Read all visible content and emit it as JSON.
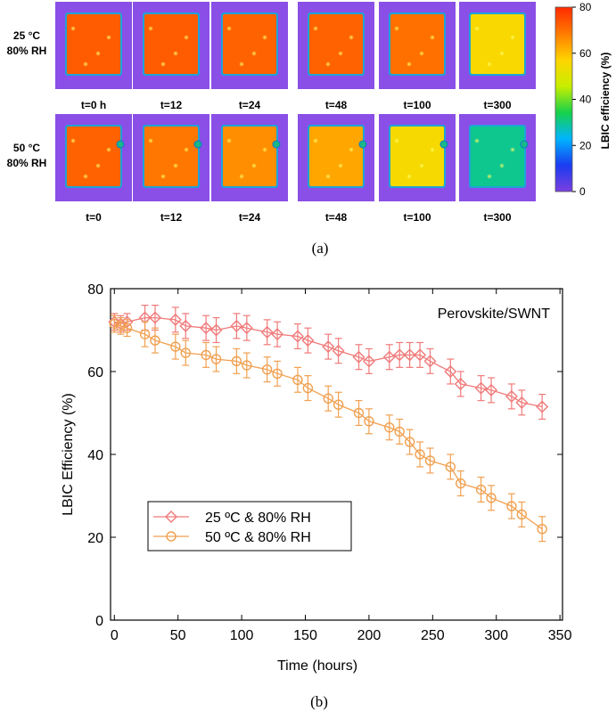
{
  "panel_a": {
    "caption": "(a)",
    "rows": [
      {
        "condition_line1": "25 °C",
        "condition_line2": "80% RH",
        "time_labels": [
          "t=0 h",
          "t=12",
          "t=24",
          "t=48",
          "t=100",
          "t=300"
        ],
        "map_efficiency_pct": [
          73,
          73,
          72,
          72,
          70,
          56
        ]
      },
      {
        "condition_line1": "50 °C",
        "condition_line2": "80% RH",
        "time_labels": [
          "t=0",
          "t=12",
          "t=24",
          "t=48",
          "t=100",
          "t=300"
        ],
        "map_efficiency_pct": [
          72,
          69,
          66,
          63,
          55,
          30
        ]
      }
    ],
    "colorbar": {
      "label": "LBIC efficiency (%)",
      "ticks": [
        "0",
        "20",
        "40",
        "60",
        "80"
      ],
      "range": [
        0,
        80
      ],
      "colors": [
        "#7b3fe0",
        "#1a3cf0",
        "#00b4ff",
        "#17d24a",
        "#c8ee00",
        "#ffd400",
        "#ff7a00",
        "#ff2a00"
      ]
    }
  },
  "chart_data": {
    "type": "line",
    "caption": "(b)",
    "annotation": "Perovskite/SWNT",
    "xlabel": "Time (hours)",
    "ylabel": "LBIC Efficiency (%)",
    "xlim": [
      -3,
      352
    ],
    "ylim": [
      0,
      80
    ],
    "xticks": [
      0,
      50,
      100,
      150,
      200,
      250,
      300,
      350
    ],
    "yticks": [
      0,
      20,
      40,
      60,
      80
    ],
    "grid": false,
    "legend_position": "lower-left",
    "series": [
      {
        "name": "25 ºC & 80% RH",
        "marker": "diamond",
        "color": "#f07a7a",
        "x": [
          0,
          5,
          10,
          24,
          32,
          48,
          56,
          72,
          80,
          96,
          104,
          120,
          128,
          144,
          152,
          168,
          176,
          192,
          200,
          216,
          224,
          232,
          240,
          248,
          264,
          272,
          288,
          296,
          312,
          320,
          336
        ],
        "y": [
          72,
          71.5,
          72,
          73,
          73,
          72.5,
          71,
          70.5,
          70,
          71,
          70.5,
          69.5,
          69,
          68.5,
          67.5,
          66,
          65,
          63.5,
          62.5,
          63.5,
          64,
          64,
          64,
          62.5,
          60,
          57,
          56,
          55.5,
          54,
          52.5,
          51.5
        ],
        "err": [
          2,
          2,
          2,
          3,
          3,
          3,
          3,
          3,
          3,
          3,
          3,
          3,
          3,
          3,
          3,
          3,
          3,
          3,
          3,
          3,
          3,
          3,
          3,
          3,
          3,
          3,
          3,
          3,
          3,
          3,
          3
        ]
      },
      {
        "name": "50 ºC & 80% RH",
        "marker": "circle",
        "color": "#f0a050",
        "x": [
          0,
          5,
          10,
          24,
          32,
          48,
          56,
          72,
          80,
          96,
          104,
          120,
          128,
          144,
          152,
          168,
          176,
          192,
          200,
          216,
          224,
          232,
          240,
          248,
          264,
          272,
          288,
          296,
          312,
          320,
          336
        ],
        "y": [
          71.5,
          71,
          70.5,
          69,
          67.5,
          66,
          64.5,
          64,
          63,
          62.5,
          61.5,
          60.5,
          59.5,
          58,
          56,
          53.5,
          52,
          50,
          48,
          46.5,
          45.5,
          43,
          40,
          38.5,
          37,
          33,
          31.5,
          29.5,
          27.5,
          25.5,
          22
        ],
        "err": [
          2,
          2,
          2,
          3,
          3,
          3,
          3,
          3,
          3,
          3,
          3,
          3,
          3,
          3,
          3,
          3,
          3,
          3,
          3,
          3,
          3,
          3,
          3,
          3,
          3,
          3,
          3,
          3,
          3,
          3,
          3
        ]
      }
    ]
  }
}
